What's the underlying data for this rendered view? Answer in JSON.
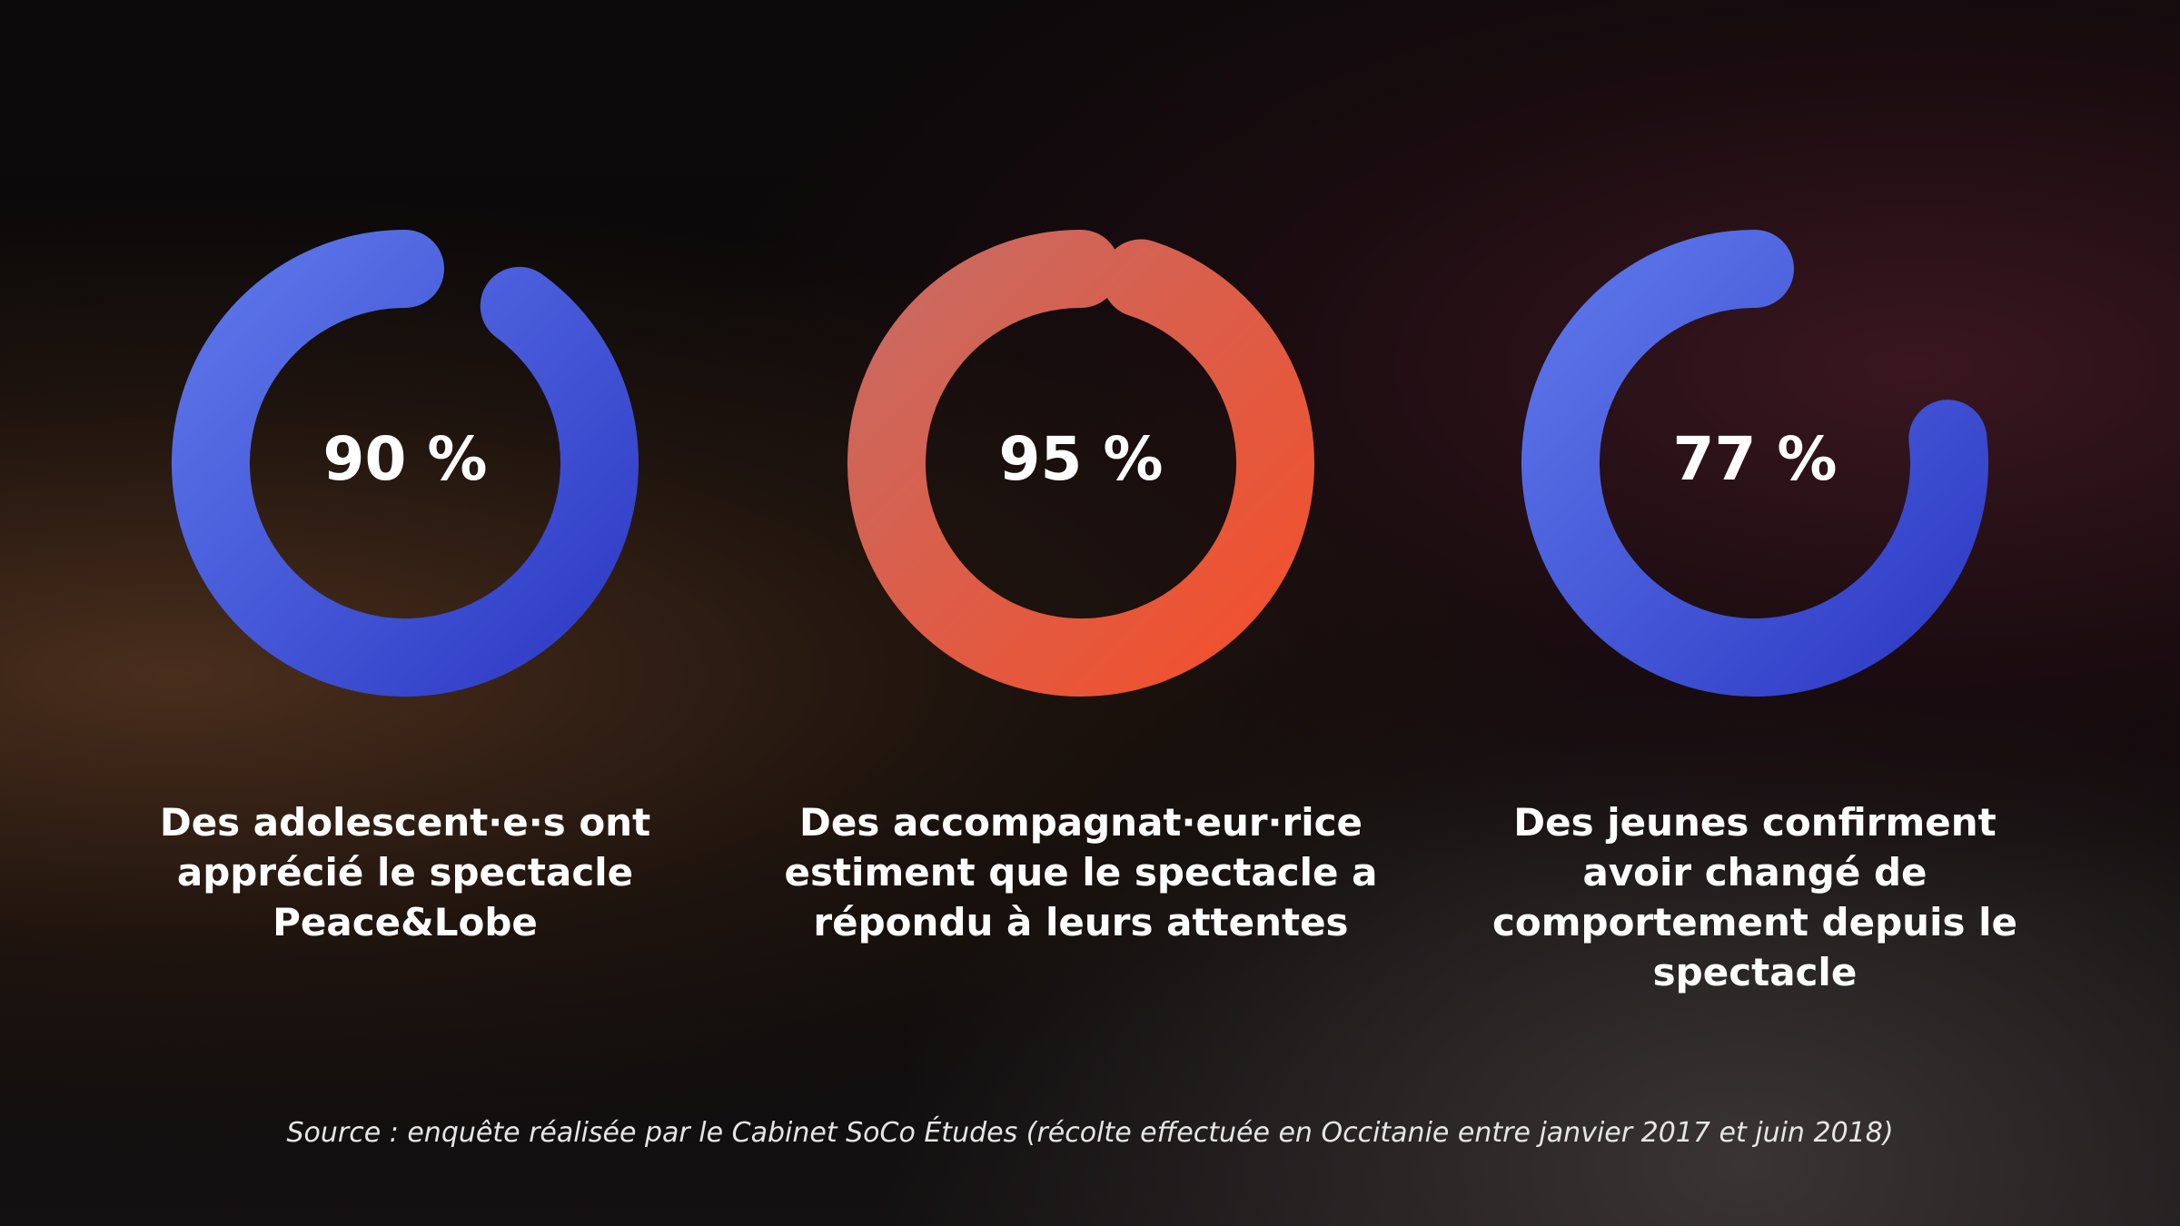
{
  "chart_data": [
    {
      "type": "ring",
      "values": [
        90
      ],
      "value_labels": [
        "90 %"
      ],
      "ylim": [
        0,
        100
      ],
      "color": [
        "#5d76ea",
        "#2f3cc6"
      ],
      "caption": "Des adolescent·e·s ont apprécié le spectacle Peace&Lobe"
    },
    {
      "type": "ring",
      "values": [
        95
      ],
      "value_labels": [
        "95 %"
      ],
      "ylim": [
        0,
        100
      ],
      "color": [
        "#c86a62",
        "#f2502c"
      ],
      "caption": "Des accompagnat·eur·rice estiment que le spectacle a répondu à leurs attentes"
    },
    {
      "type": "ring",
      "values": [
        77
      ],
      "value_labels": [
        "77 %"
      ],
      "ylim": [
        0,
        100
      ],
      "color": [
        "#5d76ea",
        "#2f3cc6"
      ],
      "caption": "Des jeunes confirment avoir changé de comportement depuis le spectacle"
    }
  ],
  "footnote": "Source : enquête réalisée par le Cabinet SoCo Études (récolte effectuée en Occitanie entre janvier 2017 et juin 2018)"
}
